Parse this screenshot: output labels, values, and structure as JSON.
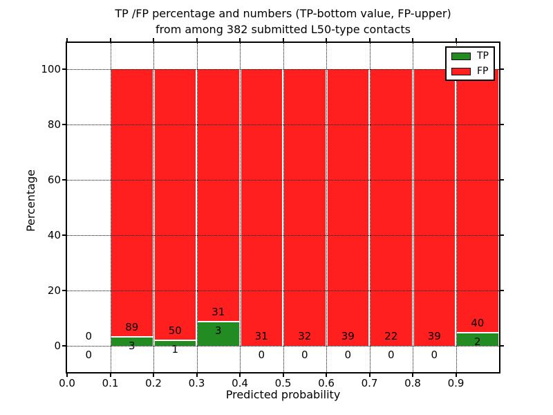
{
  "title": {
    "line1": "TP /FP percentage and numbers (TP-bottom value, FP-upper)",
    "line2": "from among 382 submitted L50-type contacts"
  },
  "axes": {
    "xlabel": "Predicted probability",
    "ylabel": "Percentage",
    "x_tick_labels": [
      "0.0",
      "0.1",
      "0.2",
      "0.3",
      "0.4",
      "0.5",
      "0.6",
      "0.7",
      "0.8",
      "0.9"
    ],
    "x_tick_values": [
      0.0,
      0.1,
      0.2,
      0.3,
      0.4,
      0.5,
      0.6,
      0.7,
      0.8,
      0.9
    ],
    "y_tick_labels": [
      "0",
      "20",
      "40",
      "60",
      "80",
      "100"
    ],
    "y_tick_values": [
      0,
      20,
      40,
      60,
      80,
      100
    ],
    "xlim": [
      0.0,
      1.0
    ],
    "ylim": [
      -9.5,
      109.5
    ],
    "grid_style": "dotted"
  },
  "legend": {
    "position": "upper-right",
    "items": [
      {
        "label": "TP",
        "color": "#228b22"
      },
      {
        "label": "FP",
        "color": "#ff1f1f"
      }
    ]
  },
  "colors": {
    "tp": "#228b22",
    "fp": "#ff1f1f",
    "grid": "#000000",
    "frame": "#000000",
    "background": "#ffffff"
  },
  "chart_data": {
    "type": "bar",
    "stacked": true,
    "total_contacts": 382,
    "bin_edges": [
      0.0,
      0.1,
      0.2,
      0.3,
      0.4,
      0.5,
      0.6,
      0.7,
      0.8,
      0.9,
      1.0
    ],
    "categories": [
      "0.0-0.1",
      "0.1-0.2",
      "0.2-0.3",
      "0.3-0.4",
      "0.4-0.5",
      "0.5-0.6",
      "0.6-0.7",
      "0.7-0.8",
      "0.8-0.9",
      "0.9-1.0"
    ],
    "series": [
      {
        "name": "TP",
        "color": "#228b22",
        "counts": [
          0,
          3,
          1,
          3,
          0,
          0,
          0,
          0,
          0,
          2
        ]
      },
      {
        "name": "FP",
        "color": "#ff1f1f",
        "counts": [
          0,
          89,
          50,
          31,
          31,
          32,
          39,
          22,
          39,
          40
        ]
      }
    ],
    "tp_percent_of_bin": [
      0,
      3.26,
      1.96,
      8.82,
      0,
      0,
      0,
      0,
      0,
      4.76
    ],
    "fp_percent_of_bin": [
      0,
      96.74,
      98.04,
      91.18,
      100,
      100,
      100,
      100,
      100,
      95.24
    ],
    "note": "each non-empty bin stacks to 100%; FP count printed above TP/FP boundary, TP count below"
  }
}
